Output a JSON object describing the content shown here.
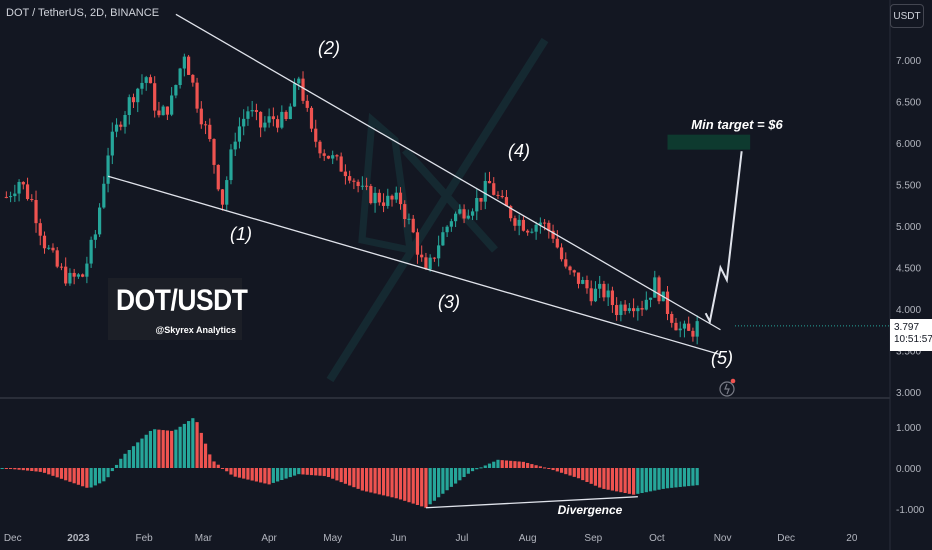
{
  "header": {
    "symbol": "DOT / TetherUS, 2D, BINANCE",
    "currency_button": "USDT"
  },
  "overlay": {
    "title": "DOT/USDT",
    "credit": "@Skyrex Analytics",
    "target_label": "Min target = $6",
    "divergence_label": "Divergence",
    "waves": [
      "(1)",
      "(2)",
      "(3)",
      "(4)",
      "(5)"
    ]
  },
  "price_tag": {
    "price": "3.797",
    "countdown": "10:51:57"
  },
  "colors": {
    "background": "#131722",
    "bull": "#26a69a",
    "bear": "#ef5350",
    "line": "#e0e3eb",
    "target_zone": "#0e3a2f",
    "axis_text": "#b2b5be"
  },
  "chart_data": [
    {
      "type": "candlestick",
      "title": "DOT / TetherUS, 2D, BINANCE",
      "ylim": [
        3.0,
        7.5
      ],
      "y_ticks": [
        "7.000",
        "6.500",
        "6.000",
        "5.500",
        "5.000",
        "4.500",
        "4.000",
        "3.500",
        "3.000"
      ],
      "x_ticks": [
        "Dec",
        "2023",
        "Feb",
        "Mar",
        "Apr",
        "May",
        "Jun",
        "Jul",
        "Aug",
        "Sep",
        "Oct",
        "Nov",
        "Dec",
        "20"
      ],
      "close_path": [
        {
          "date": "2022-11-28",
          "close": 5.35
        },
        {
          "date": "2022-12-04",
          "close": 5.55
        },
        {
          "date": "2022-12-10",
          "close": 5.3
        },
        {
          "date": "2022-12-16",
          "close": 4.8
        },
        {
          "date": "2022-12-22",
          "close": 4.5
        },
        {
          "date": "2022-12-28",
          "close": 4.35
        },
        {
          "date": "2023-01-03",
          "close": 4.4
        },
        {
          "date": "2023-01-09",
          "close": 4.9
        },
        {
          "date": "2023-01-15",
          "close": 5.9
        },
        {
          "date": "2023-01-21",
          "close": 6.3
        },
        {
          "date": "2023-01-27",
          "close": 6.6
        },
        {
          "date": "2023-02-02",
          "close": 6.8
        },
        {
          "date": "2023-02-08",
          "close": 6.3
        },
        {
          "date": "2023-02-14",
          "close": 6.5
        },
        {
          "date": "2023-02-20",
          "close": 7.1
        },
        {
          "date": "2023-02-26",
          "close": 6.5
        },
        {
          "date": "2023-03-04",
          "close": 6.0
        },
        {
          "date": "2023-03-10",
          "close": 5.3
        },
        {
          "date": "2023-03-16",
          "close": 6.1
        },
        {
          "date": "2023-03-22",
          "close": 6.4
        },
        {
          "date": "2023-03-28",
          "close": 6.2
        },
        {
          "date": "2023-04-03",
          "close": 6.3
        },
        {
          "date": "2023-04-09",
          "close": 6.25
        },
        {
          "date": "2023-04-15",
          "close": 6.8
        },
        {
          "date": "2023-04-21",
          "close": 6.1
        },
        {
          "date": "2023-04-27",
          "close": 5.9
        },
        {
          "date": "2023-05-03",
          "close": 5.75
        },
        {
          "date": "2023-05-09",
          "close": 5.65
        },
        {
          "date": "2023-05-15",
          "close": 5.4
        },
        {
          "date": "2023-05-21",
          "close": 5.35
        },
        {
          "date": "2023-05-27",
          "close": 5.3
        },
        {
          "date": "2023-06-02",
          "close": 5.3
        },
        {
          "date": "2023-06-08",
          "close": 4.9
        },
        {
          "date": "2023-06-14",
          "close": 4.4
        },
        {
          "date": "2023-06-20",
          "close": 4.8
        },
        {
          "date": "2023-06-26",
          "close": 5.1
        },
        {
          "date": "2023-07-02",
          "close": 5.2
        },
        {
          "date": "2023-07-08",
          "close": 5.3
        },
        {
          "date": "2023-07-14",
          "close": 5.5
        },
        {
          "date": "2023-07-20",
          "close": 5.25
        },
        {
          "date": "2023-07-26",
          "close": 5.1
        },
        {
          "date": "2023-08-01",
          "close": 5.0
        },
        {
          "date": "2023-08-07",
          "close": 5.05
        },
        {
          "date": "2023-08-13",
          "close": 4.9
        },
        {
          "date": "2023-08-19",
          "close": 4.45
        },
        {
          "date": "2023-08-25",
          "close": 4.35
        },
        {
          "date": "2023-08-31",
          "close": 4.2
        },
        {
          "date": "2023-09-06",
          "close": 4.2
        },
        {
          "date": "2023-09-12",
          "close": 4.0
        },
        {
          "date": "2023-09-18",
          "close": 4.1
        },
        {
          "date": "2023-09-24",
          "close": 4.05
        },
        {
          "date": "2023-09-30",
          "close": 4.3
        },
        {
          "date": "2023-10-06",
          "close": 4.0
        },
        {
          "date": "2023-10-12",
          "close": 3.75
        },
        {
          "date": "2023-10-16",
          "close": 3.7
        },
        {
          "date": "2023-10-20",
          "close": 3.797
        }
      ],
      "trendlines": [
        {
          "name": "upper",
          "from": {
            "date": "2023-02-16",
            "price": 7.55
          },
          "to": {
            "date": "2023-10-31",
            "price": 3.75
          }
        },
        {
          "name": "lower",
          "from": {
            "date": "2023-01-15",
            "price": 5.6
          },
          "to": {
            "date": "2023-10-31",
            "price": 3.45
          }
        }
      ],
      "projection": [
        {
          "date": "2023-10-24",
          "price": 3.95
        },
        {
          "date": "2023-10-26",
          "price": 3.85
        },
        {
          "date": "2023-10-31",
          "price": 4.5
        },
        {
          "date": "2023-11-03",
          "price": 4.35
        },
        {
          "date": "2023-11-10",
          "price": 5.9
        }
      ],
      "target_zone": {
        "price_low": 5.92,
        "price_high": 6.1,
        "from": "2023-10-06",
        "to": "2023-11-14"
      }
    },
    {
      "type": "bar",
      "title": "",
      "ylim": [
        -1.0,
        1.3
      ],
      "y_ticks": [
        "1.000",
        "0.000",
        "-1.000"
      ],
      "x": [
        "Dec",
        "2023",
        "Feb",
        "Mar",
        "Apr",
        "May",
        "Jun",
        "Jul",
        "Aug",
        "Sep",
        "Oct"
      ],
      "series": [
        {
          "values": [
            -0.08,
            -0.55,
            0.05,
            1.2,
            -0.05,
            -0.65,
            -0.85,
            0.22,
            -0.15,
            -0.7,
            -0.4
          ]
        }
      ],
      "divergence": {
        "from": {
          "date": "2023-06-14",
          "value": -0.97
        },
        "to": {
          "date": "2023-09-22",
          "value": -0.7
        }
      }
    }
  ]
}
